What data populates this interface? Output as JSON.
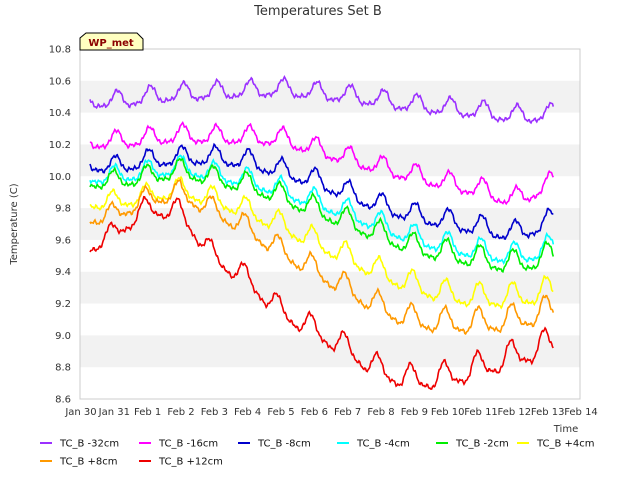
{
  "chart_data": {
    "type": "line",
    "title": "Temperatures Set B",
    "xlabel": "Time",
    "ylabel": "Temperature (C)",
    "badge": "WP_met",
    "ylim": [
      8.6,
      10.8
    ],
    "yticks": [
      8.6,
      8.8,
      9.0,
      9.2,
      9.4,
      9.6,
      9.8,
      10.0,
      10.2,
      10.4,
      10.6,
      10.8
    ],
    "xlim": [
      0,
      15
    ],
    "xtick_labels": [
      "Jan 30",
      "Jan 31",
      "Feb 1",
      "Feb 2",
      "Feb 3",
      "Feb 4",
      "Feb 5",
      "Feb 6",
      "Feb 7",
      "Feb 8",
      "Feb 9",
      "Feb 10",
      "Feb 11",
      "Feb 12",
      "Feb 13",
      "Feb 14"
    ],
    "grid": "horizontal bands",
    "legend_position": "bottom",
    "x": [
      0.3,
      1,
      2,
      3,
      4,
      5,
      6,
      7,
      8,
      9,
      10,
      11,
      12,
      13,
      14.2
    ],
    "series": [
      {
        "name": "TC_B -32cm",
        "color": "#9b30ff",
        "values": [
          10.48,
          10.47,
          10.5,
          10.52,
          10.53,
          10.54,
          10.55,
          10.53,
          10.51,
          10.48,
          10.45,
          10.43,
          10.41,
          10.38,
          10.39
        ]
      },
      {
        "name": "TC_B -16cm",
        "color": "#ff00ff",
        "values": [
          10.22,
          10.22,
          10.24,
          10.26,
          10.25,
          10.25,
          10.24,
          10.18,
          10.12,
          10.06,
          10.01,
          9.96,
          9.92,
          9.85,
          9.96
        ]
      },
      {
        "name": "TC_B -8cm",
        "color": "#0000cc",
        "values": [
          10.08,
          10.06,
          10.1,
          10.12,
          10.12,
          10.1,
          10.04,
          9.98,
          9.9,
          9.82,
          9.76,
          9.72,
          9.68,
          9.64,
          9.72
        ]
      },
      {
        "name": "TC_B -4cm",
        "color": "#00ffff",
        "values": [
          10.0,
          10.0,
          10.03,
          10.06,
          10.02,
          9.98,
          9.92,
          9.85,
          9.78,
          9.7,
          9.62,
          9.57,
          9.53,
          9.5,
          9.55
        ]
      },
      {
        "name": "TC_B -2cm",
        "color": "#00ee00",
        "values": [
          9.97,
          9.97,
          10.0,
          10.04,
          9.99,
          9.95,
          9.88,
          9.8,
          9.72,
          9.64,
          9.56,
          9.52,
          9.48,
          9.45,
          9.5
        ]
      },
      {
        "name": "TC_B +4cm",
        "color": "#ffff00",
        "values": [
          9.84,
          9.84,
          9.88,
          9.92,
          9.86,
          9.79,
          9.7,
          9.6,
          9.5,
          9.4,
          9.32,
          9.26,
          9.24,
          9.24,
          9.28
        ]
      },
      {
        "name": "TC_B +8cm",
        "color": "#ff9900",
        "values": [
          9.74,
          9.76,
          9.86,
          9.9,
          9.79,
          9.68,
          9.54,
          9.42,
          9.3,
          9.18,
          9.1,
          9.08,
          9.08,
          9.1,
          9.16
        ]
      },
      {
        "name": "TC_B +12cm",
        "color": "#ee0000",
        "values": [
          9.56,
          9.64,
          9.8,
          9.78,
          9.5,
          9.36,
          9.16,
          9.04,
          8.92,
          8.78,
          8.72,
          8.74,
          8.8,
          8.87,
          8.95
        ]
      }
    ]
  }
}
